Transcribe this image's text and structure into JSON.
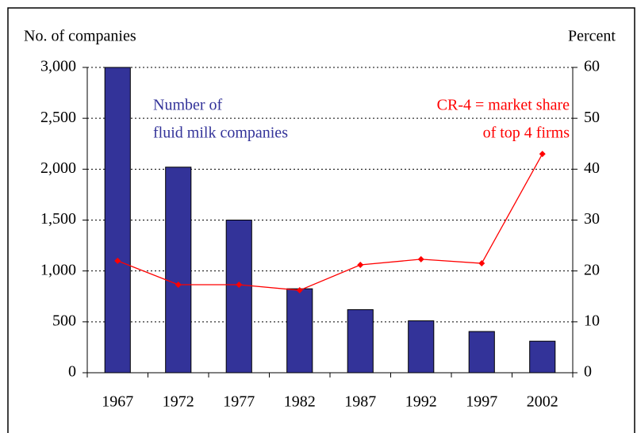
{
  "chart_data": {
    "type": "bar-line",
    "y_axis_label": "No. of companies",
    "y2_axis_label": "Percent",
    "categories": [
      "1967",
      "1972",
      "1977",
      "1982",
      "1987",
      "1992",
      "1997",
      "2002"
    ],
    "series": [
      {
        "name": [
          "Number of",
          "fluid milk companies"
        ],
        "type": "bar",
        "color": "#333399",
        "axis": "y",
        "values": [
          3000,
          2020,
          1500,
          825,
          620,
          510,
          405,
          310
        ]
      },
      {
        "name": [
          "CR-4 = market share",
          "of top 4 firms"
        ],
        "type": "line",
        "color": "#ff0000",
        "axis": "y2",
        "values": [
          22,
          17.3,
          17.3,
          16.2,
          21.2,
          22.3,
          21.5,
          43
        ]
      }
    ],
    "ylim": [
      0,
      3000
    ],
    "yticks": [
      0,
      500,
      {
        "value": 1000,
        "label": "1,000"
      },
      {
        "value": 1500,
        "label": "1,500"
      },
      {
        "value": 2000,
        "label": "2,000"
      },
      {
        "value": 2500,
        "label": "2,500"
      },
      {
        "value": 3000,
        "label": "3,000"
      }
    ],
    "y2lim": [
      0,
      60
    ],
    "y2ticks": [
      0,
      10,
      20,
      30,
      40,
      50,
      60
    ],
    "grid": true
  }
}
